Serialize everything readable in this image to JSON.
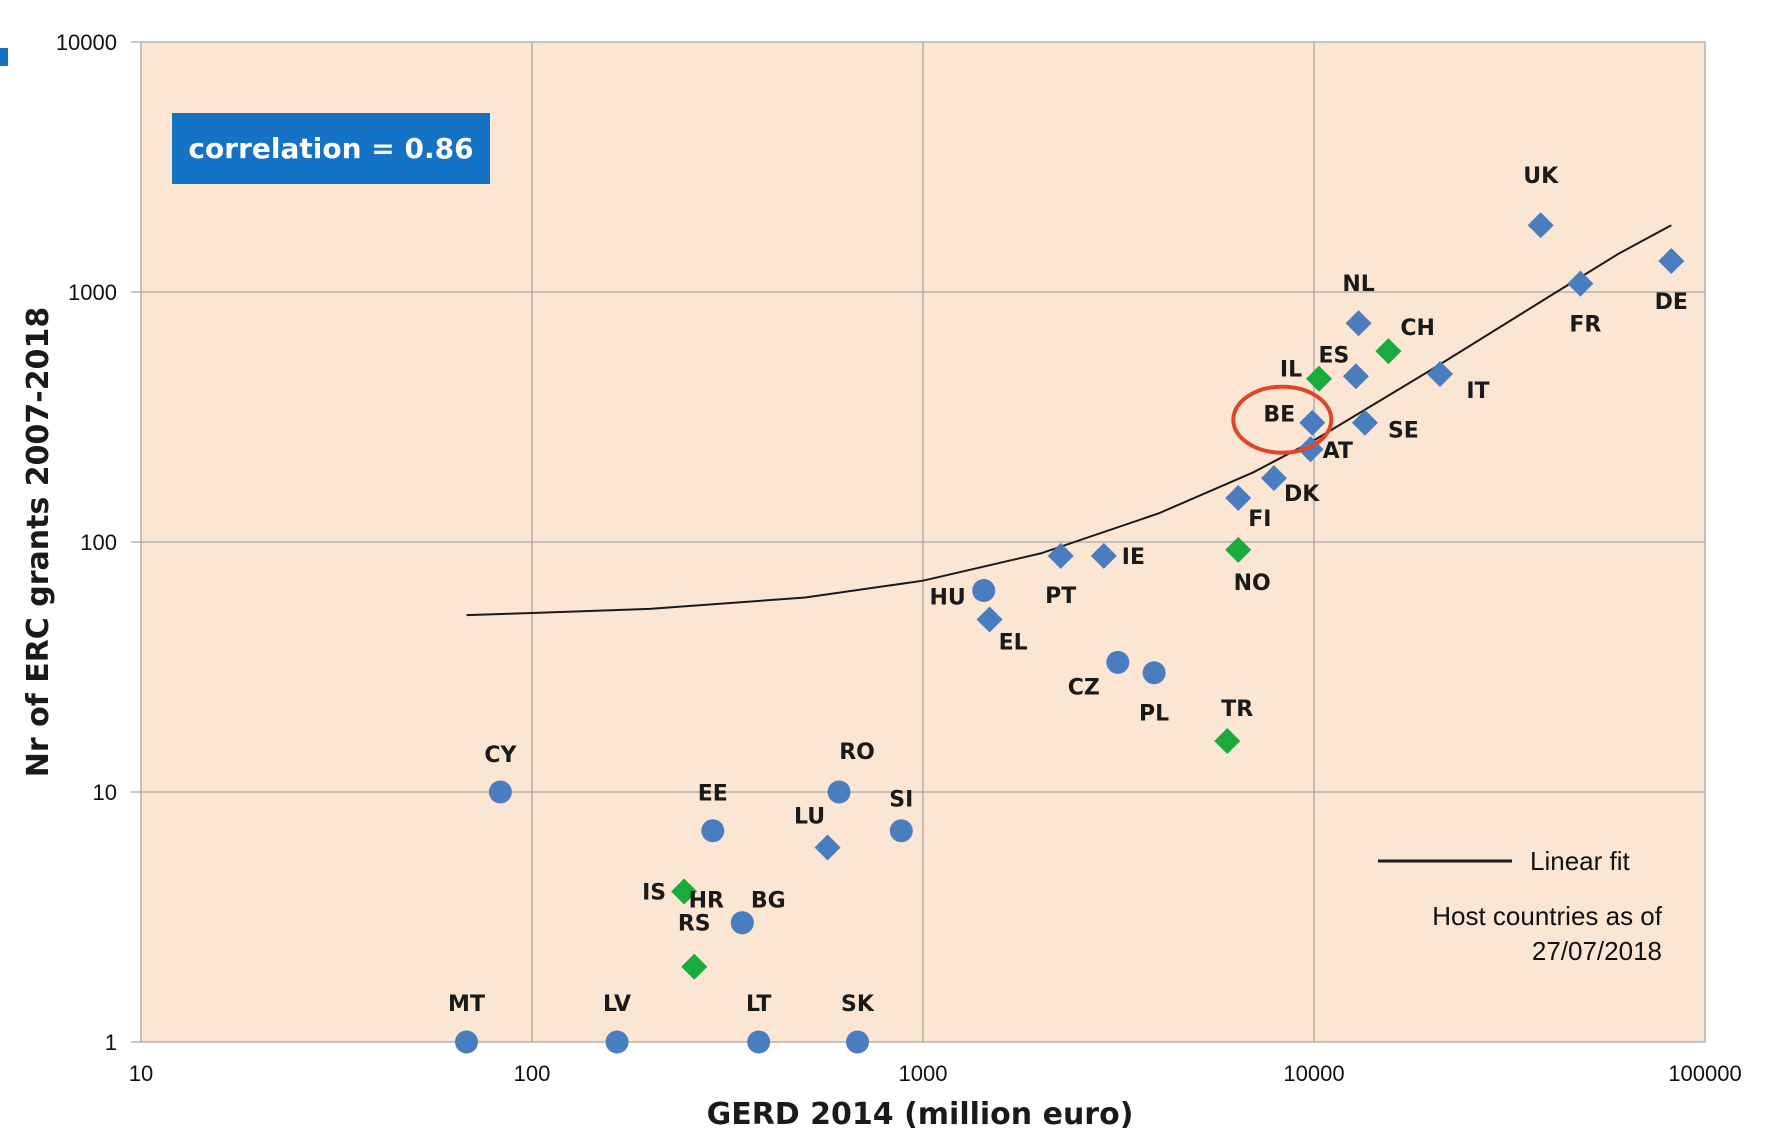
{
  "chart_data": {
    "type": "scatter",
    "xlabel": "GERD 2014 (million euro)",
    "ylabel": "Nr of ERC grants 2007-2018",
    "x_scale": "log",
    "y_scale": "log",
    "xlim": [
      10,
      100000
    ],
    "ylim": [
      1,
      10000
    ],
    "x_ticks": [
      "10",
      "100",
      "1000",
      "10000",
      "100000"
    ],
    "y_ticks": [
      "1",
      "10",
      "100",
      "1000",
      "10000"
    ],
    "grid": true,
    "annotation": "correlation = 0.86",
    "legend": {
      "placement": "bottom-right",
      "fit_label": "Linear fit",
      "note_line1": "Host countries as of",
      "note_line2": "27/07/2018"
    },
    "highlight": "BE",
    "fit_line": {
      "x": [
        68,
        100,
        200,
        500,
        1000,
        2000,
        4000,
        7000,
        10000,
        20000,
        40000,
        60000,
        82000
      ],
      "y": [
        51,
        52,
        54,
        60,
        70,
        90,
        130,
        190,
        255,
        490,
        960,
        1420,
        1850
      ]
    },
    "points": [
      {
        "label": "UK",
        "x": 38000,
        "y": 1850,
        "marker": "diamond",
        "color": "#4a7cc0"
      },
      {
        "label": "DE",
        "x": 82000,
        "y": 1330,
        "marker": "diamond",
        "color": "#4a7cc0"
      },
      {
        "label": "FR",
        "x": 48000,
        "y": 1080,
        "marker": "diamond",
        "color": "#4a7cc0"
      },
      {
        "label": "NL",
        "x": 13000,
        "y": 750,
        "marker": "diamond",
        "color": "#4a7cc0"
      },
      {
        "label": "CH",
        "x": 15500,
        "y": 580,
        "marker": "diamond",
        "color": "#1aab3c"
      },
      {
        "label": "ES",
        "x": 12800,
        "y": 460,
        "marker": "diamond",
        "color": "#4a7cc0"
      },
      {
        "label": "IL",
        "x": 10300,
        "y": 450,
        "marker": "diamond",
        "color": "#1aab3c"
      },
      {
        "label": "IT",
        "x": 21000,
        "y": 470,
        "marker": "diamond",
        "color": "#4a7cc0"
      },
      {
        "label": "BE",
        "x": 9900,
        "y": 300,
        "marker": "diamond",
        "color": "#4a7cc0"
      },
      {
        "label": "SE",
        "x": 13500,
        "y": 300,
        "marker": "diamond",
        "color": "#4a7cc0"
      },
      {
        "label": "AT",
        "x": 9800,
        "y": 235,
        "marker": "diamond",
        "color": "#4a7cc0"
      },
      {
        "label": "DK",
        "x": 7900,
        "y": 180,
        "marker": "diamond",
        "color": "#4a7cc0"
      },
      {
        "label": "FI",
        "x": 6400,
        "y": 150,
        "marker": "diamond",
        "color": "#4a7cc0"
      },
      {
        "label": "NO",
        "x": 6400,
        "y": 93,
        "marker": "diamond",
        "color": "#1aab3c"
      },
      {
        "label": "IE",
        "x": 2900,
        "y": 88,
        "marker": "diamond",
        "color": "#4a7cc0"
      },
      {
        "label": "PT",
        "x": 2250,
        "y": 88,
        "marker": "diamond",
        "color": "#4a7cc0"
      },
      {
        "label": "HU",
        "x": 1430,
        "y": 64,
        "marker": "circle",
        "color": "#4a7cc0"
      },
      {
        "label": "EL",
        "x": 1480,
        "y": 49,
        "marker": "diamond",
        "color": "#4a7cc0"
      },
      {
        "label": "CZ",
        "x": 3150,
        "y": 33,
        "marker": "circle",
        "color": "#4a7cc0"
      },
      {
        "label": "PL",
        "x": 3900,
        "y": 30,
        "marker": "circle",
        "color": "#4a7cc0"
      },
      {
        "label": "TR",
        "x": 6000,
        "y": 16,
        "marker": "diamond",
        "color": "#1aab3c"
      },
      {
        "label": "CY",
        "x": 83,
        "y": 10,
        "marker": "circle",
        "color": "#4a7cc0"
      },
      {
        "label": "RO",
        "x": 610,
        "y": 10,
        "marker": "circle",
        "color": "#4a7cc0"
      },
      {
        "label": "EE",
        "x": 290,
        "y": 7,
        "marker": "circle",
        "color": "#4a7cc0"
      },
      {
        "label": "SI",
        "x": 880,
        "y": 7,
        "marker": "circle",
        "color": "#4a7cc0"
      },
      {
        "label": "LU",
        "x": 570,
        "y": 6,
        "marker": "diamond",
        "color": "#4a7cc0"
      },
      {
        "label": "IS",
        "x": 245,
        "y": 4,
        "marker": "diamond",
        "color": "#1aab3c"
      },
      {
        "label": "HR",
        "x": 345,
        "y": 3,
        "marker": "circle",
        "color": "#4a7cc0"
      },
      {
        "label": "BG",
        "x": 345,
        "y": 3,
        "marker": "circle",
        "color": "#4a7cc0"
      },
      {
        "label": "RS",
        "x": 260,
        "y": 2,
        "marker": "diamond",
        "color": "#1aab3c"
      },
      {
        "label": "MT",
        "x": 68,
        "y": 1,
        "marker": "circle",
        "color": "#4a7cc0"
      },
      {
        "label": "LV",
        "x": 165,
        "y": 1,
        "marker": "circle",
        "color": "#4a7cc0"
      },
      {
        "label": "LT",
        "x": 380,
        "y": 1,
        "marker": "circle",
        "color": "#4a7cc0"
      },
      {
        "label": "SK",
        "x": 680,
        "y": 1,
        "marker": "circle",
        "color": "#4a7cc0"
      }
    ]
  },
  "colors": {
    "plot_background": "#fbe6d4",
    "gridline": "#a6a6a6",
    "annotation_box": "#1473c4",
    "highlight_ring": "#e0452a",
    "fit_line": "#1a1a1a"
  }
}
